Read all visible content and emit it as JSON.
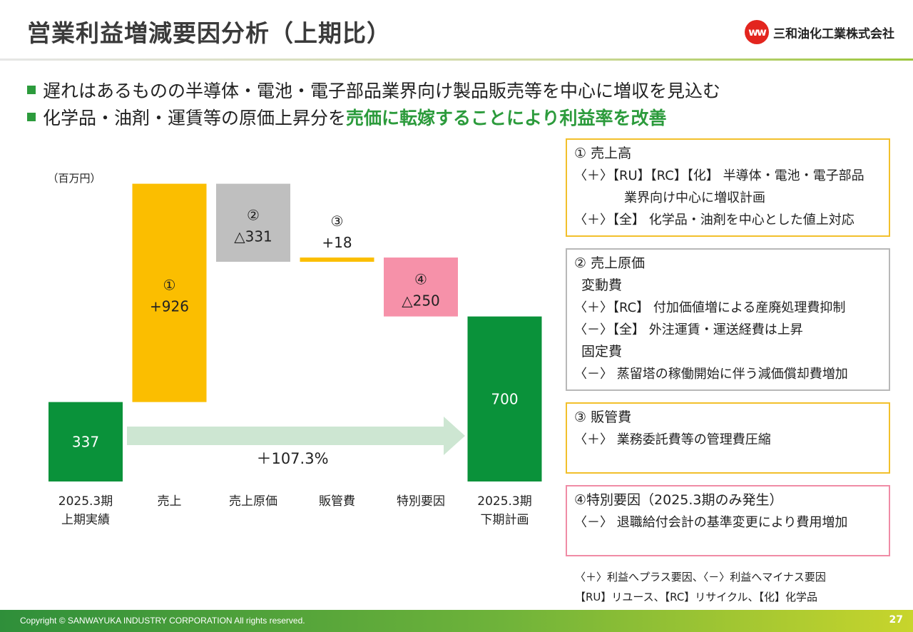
{
  "header": {
    "title": "営業利益増減要因分析（上期比）",
    "logo_mark": "ww",
    "logo_text": "三和油化工業株式会社"
  },
  "bullets": [
    {
      "text": "遅れはあるものの半導体・電池・電子部品業界向け製品販売等を中心に増収を見込む",
      "highlight": ""
    },
    {
      "text": "化学品・油剤・運賃等の原価上昇分を",
      "highlight": "売価に転嫁することにより利益率を改善"
    }
  ],
  "chart_data": {
    "type": "bar",
    "unit_label": "（百万円）",
    "categories": [
      "2025.3期\n上期実績",
      "売上",
      "売上原価",
      "販管費",
      "特別要因",
      "2025.3期\n下期計画"
    ],
    "steps": [
      {
        "kind": "total",
        "value": 337,
        "label": "337",
        "marker": "",
        "color": "#0a923a"
      },
      {
        "kind": "up",
        "value": 926,
        "label": "+926",
        "marker": "①",
        "color": "#fbbe00"
      },
      {
        "kind": "down",
        "value": -331,
        "label": "△331",
        "marker": "②",
        "color": "#bfbfbf"
      },
      {
        "kind": "up",
        "value": 18,
        "label": "+18",
        "marker": "③",
        "color": "#fbbe00"
      },
      {
        "kind": "down",
        "value": -250,
        "label": "△250",
        "marker": "④",
        "color": "#f691a9"
      },
      {
        "kind": "total",
        "value": 700,
        "label": "700",
        "marker": "",
        "color": "#0a923a"
      }
    ],
    "growth_label": "＋107.3%",
    "arrow_color": "#cde6d2"
  },
  "panels": {
    "p1": {
      "title": "① 売上高",
      "lines": [
        "〈＋〉【RU】【RC】【化】 半導体・電池・電子部品",
        "業界向け中心に増収計画",
        "〈＋〉【全】 化学品・油剤を中心とした値上対応"
      ]
    },
    "p2": {
      "title": "② 売上原価",
      "sub1": "変動費",
      "line1": "〈＋〉【RC】 付加価値増による産廃処理費抑制",
      "line2": "〈－〉【全】 外注運賃・運送経費は上昇",
      "sub2": "固定費",
      "line3": "〈－〉 蒸留塔の稼働開始に伴う減価償却費増加"
    },
    "p3": {
      "title": "③ 販管費",
      "line1": "〈＋〉 業務委託費等の管理費圧縮"
    },
    "p4": {
      "title": "④特別要因（2025.3期のみ発生）",
      "line1": "〈－〉 退職給付会計の基準変更により費用増加"
    }
  },
  "notes": [
    "〈＋〉利益へプラス要因、〈－〉利益へマイナス要因",
    "【RU】リユース、【RC】リサイクル、【化】化学品"
  ],
  "footer": {
    "copyright": "Copyright © SANWAYUKA INDUSTRY CORPORATION All rights reserved.",
    "page": "27"
  }
}
